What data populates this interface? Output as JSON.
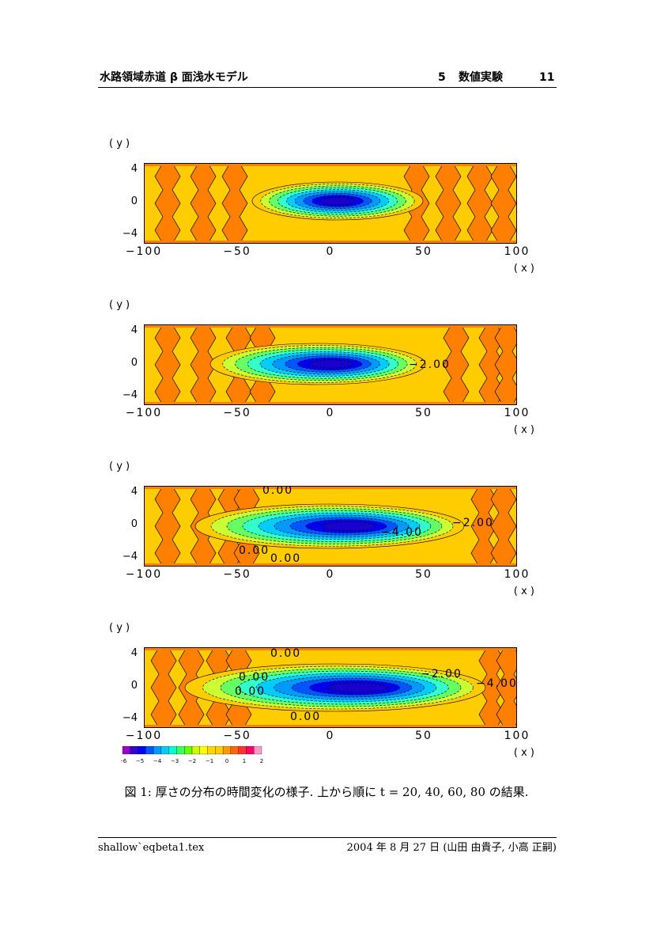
{
  "header": {
    "title": "水路領域赤道 β 面浅水モデル",
    "section_num": "5",
    "section_title": "数値実験",
    "page_num": "11"
  },
  "figure": {
    "caption": "図 1: 厚さの分布の時間変化の様子. 上から順に t = 20, 40, 60, 80 の結果.",
    "y_axis_label": "( y )",
    "x_axis_label": "( x )",
    "x_ticks": [
      "−100",
      "−50",
      "0",
      "50",
      "100"
    ],
    "y_ticks": [
      "4",
      "0",
      "−4"
    ],
    "panels": [
      {
        "t": 20,
        "contour_labels": []
      },
      {
        "t": 40,
        "contour_labels": [
          "−2.00"
        ]
      },
      {
        "t": 60,
        "contour_labels": [
          "0.00",
          "0.00",
          "0.00",
          "−4.00",
          "−2.00"
        ]
      },
      {
        "t": 80,
        "contour_labels": [
          "0.00",
          "0.00",
          "0.00",
          "0.00",
          "−2.00",
          "−4.00"
        ]
      }
    ],
    "colorbar": {
      "ticks": [
        "−6",
        "−5",
        "−4",
        "−3",
        "−2",
        "−1",
        "0",
        "1",
        "2"
      ],
      "colors": [
        "#9900cc",
        "#3300cc",
        "#0000ff",
        "#0055ff",
        "#0099ff",
        "#00ccff",
        "#00ffcc",
        "#33ff66",
        "#66ff00",
        "#ccff00",
        "#ffff00",
        "#ffd700",
        "#ffcc00",
        "#ff9900",
        "#ff6600",
        "#ff3333",
        "#ff0066",
        "#ff99cc"
      ]
    }
  },
  "footer": {
    "filename": "shallow`eqbeta1.tex",
    "date_authors": "2004 年 8 月 27 日 (山田 由貴子, 小高 正嗣)"
  }
}
